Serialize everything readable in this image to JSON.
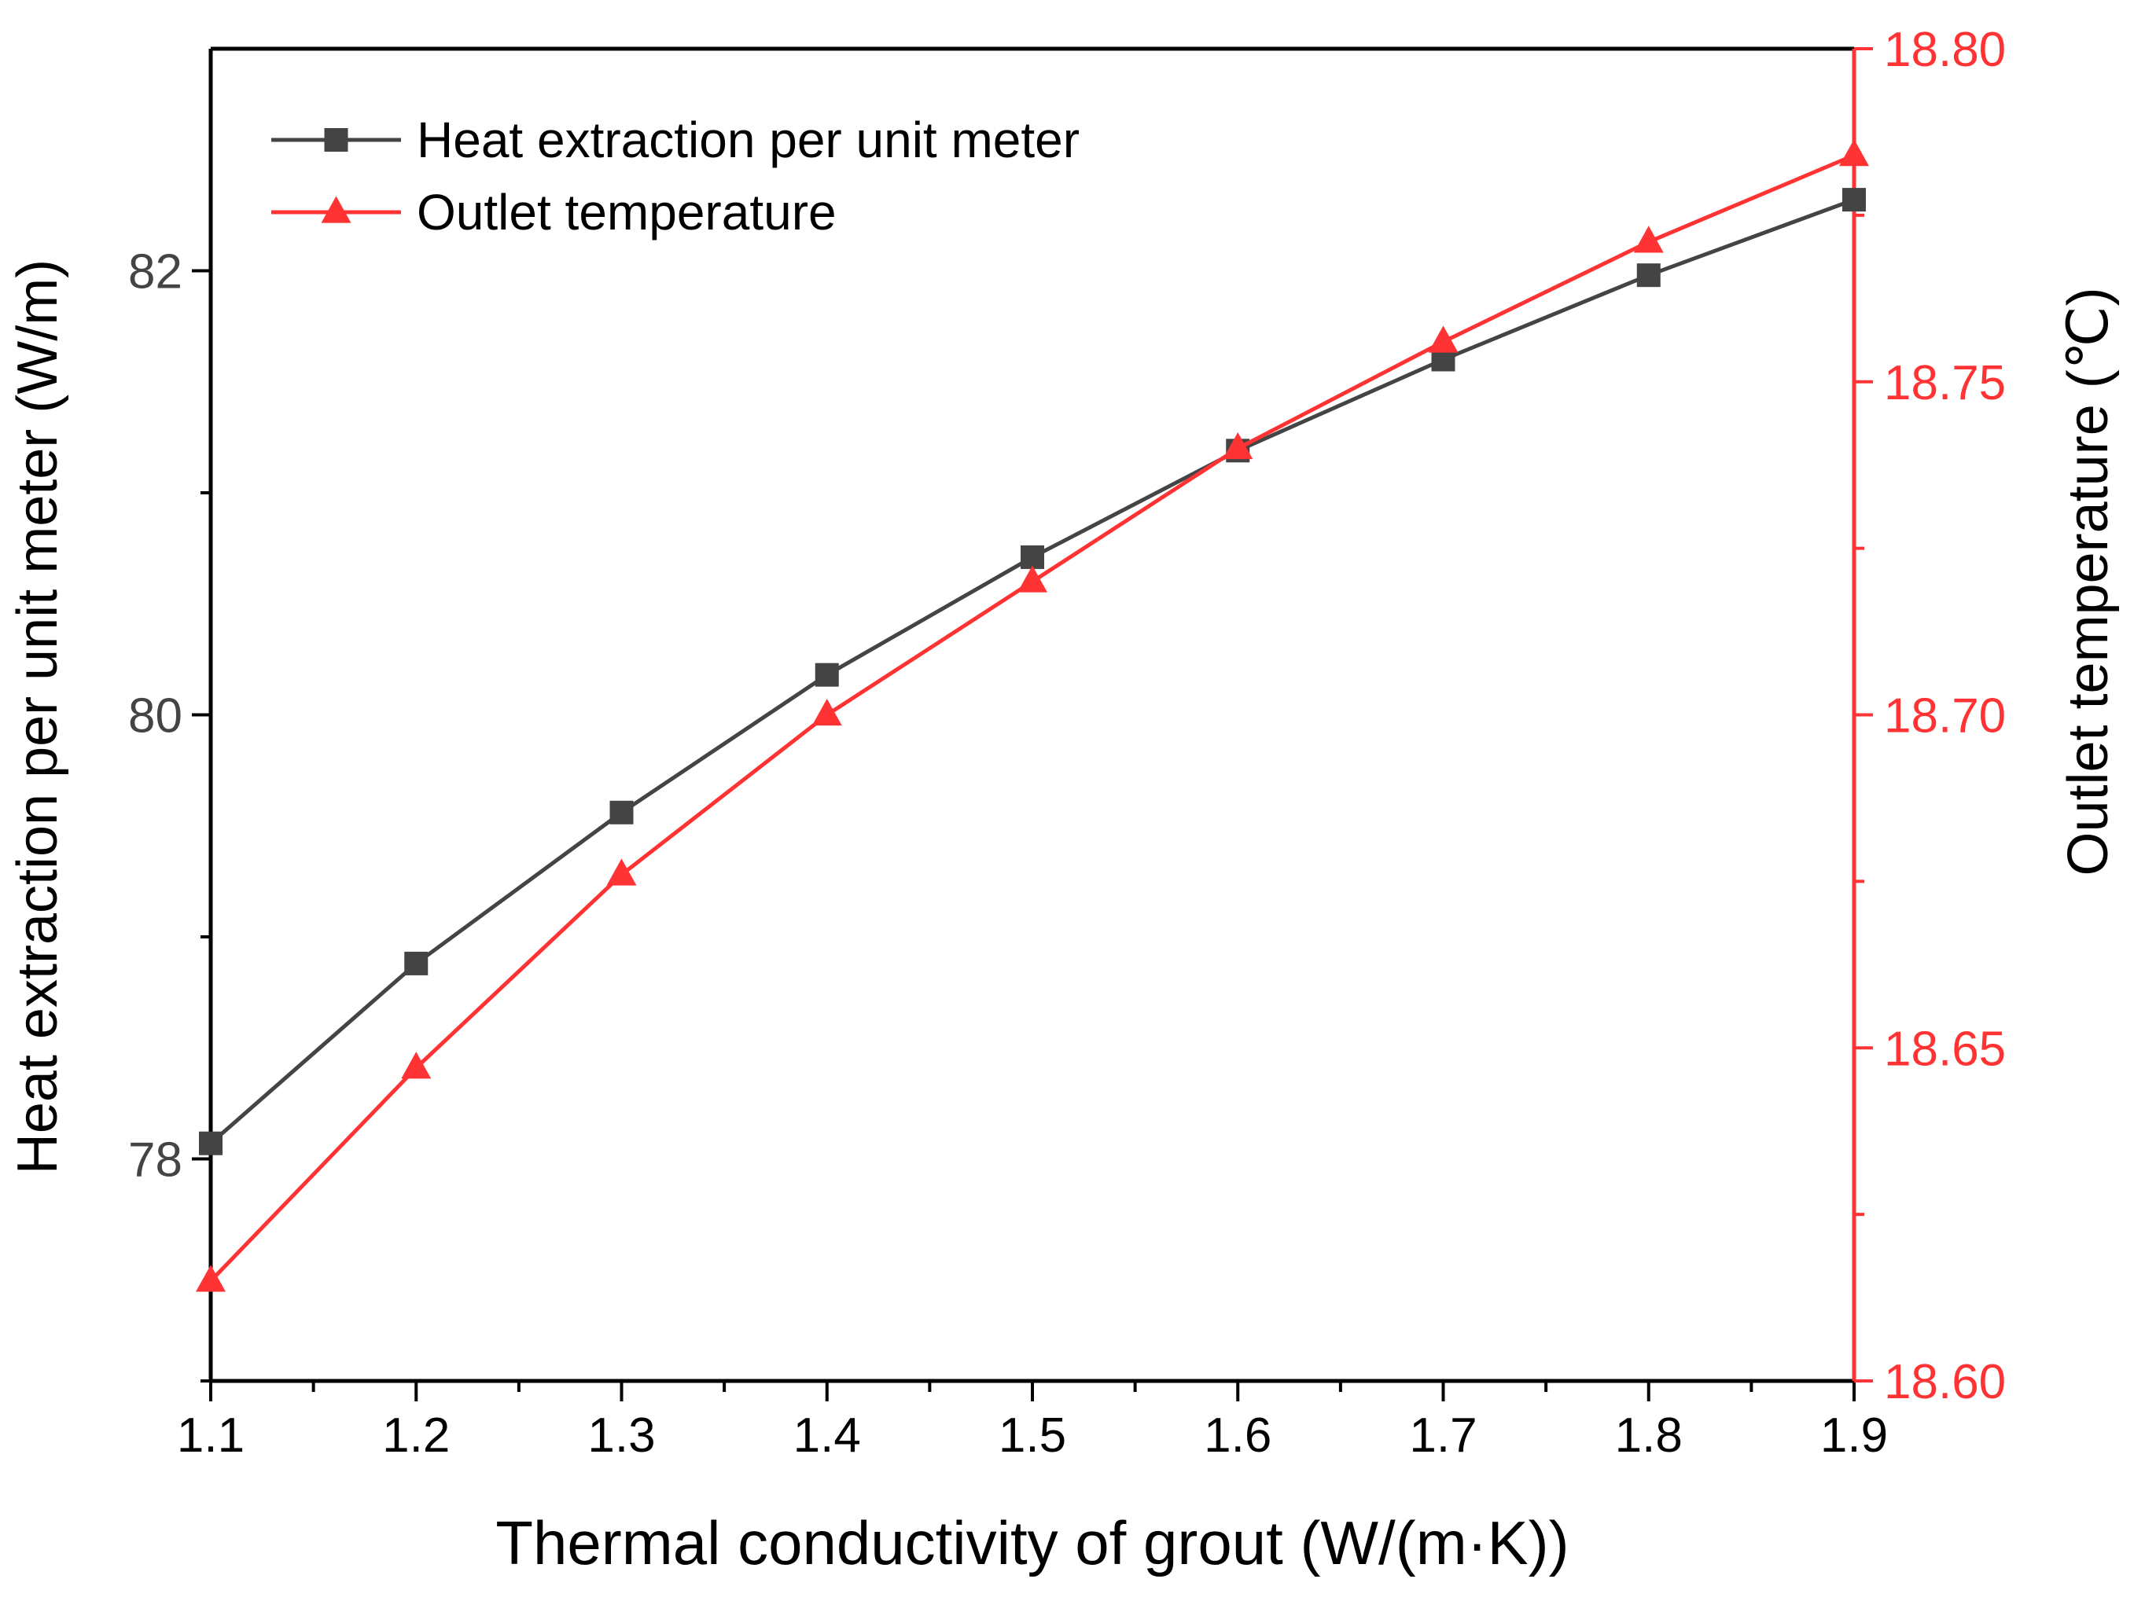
{
  "chart_data": {
    "type": "line",
    "title": "",
    "xlabel": "Thermal conductivity of grout (W/(m·K))",
    "ylabel_left": "Heat extraction per unit meter (W/m)",
    "ylabel_right": "Outlet temperature (℃)",
    "xlim": [
      1.1,
      1.9
    ],
    "ylim_left": [
      77.0,
      83.0
    ],
    "ylim_right": [
      18.6,
      18.8
    ],
    "x": [
      1.1,
      1.2,
      1.3,
      1.4,
      1.5,
      1.6,
      1.7,
      1.8,
      1.9
    ],
    "x_ticks": [
      "1.1",
      "1.2",
      "1.3",
      "1.4",
      "1.5",
      "1.6",
      "1.7",
      "1.8",
      "1.9"
    ],
    "y_left_ticks": [
      {
        "value": 78,
        "label": "78"
      },
      {
        "value": 80,
        "label": "80"
      },
      {
        "value": 82,
        "label": "82"
      }
    ],
    "y_right_ticks": [
      {
        "value": 18.6,
        "label": "18.60"
      },
      {
        "value": 18.65,
        "label": "18.65"
      },
      {
        "value": 18.7,
        "label": "18.70"
      },
      {
        "value": 18.75,
        "label": "18.75"
      },
      {
        "value": 18.8,
        "label": "18.80"
      }
    ],
    "grid": false,
    "legend_position": "top-left",
    "series": [
      {
        "name": "Heat extraction per unit meter",
        "axis": "left",
        "color": "#444444",
        "marker": "square",
        "values": [
          78.07,
          78.88,
          79.56,
          80.18,
          80.71,
          81.19,
          81.6,
          81.98,
          82.32
        ]
      },
      {
        "name": "Outlet temperature",
        "axis": "right",
        "color": "#ff3333",
        "marker": "triangle",
        "values": [
          18.615,
          18.647,
          18.676,
          18.7,
          18.72,
          18.74,
          18.756,
          18.771,
          18.784
        ]
      }
    ]
  }
}
